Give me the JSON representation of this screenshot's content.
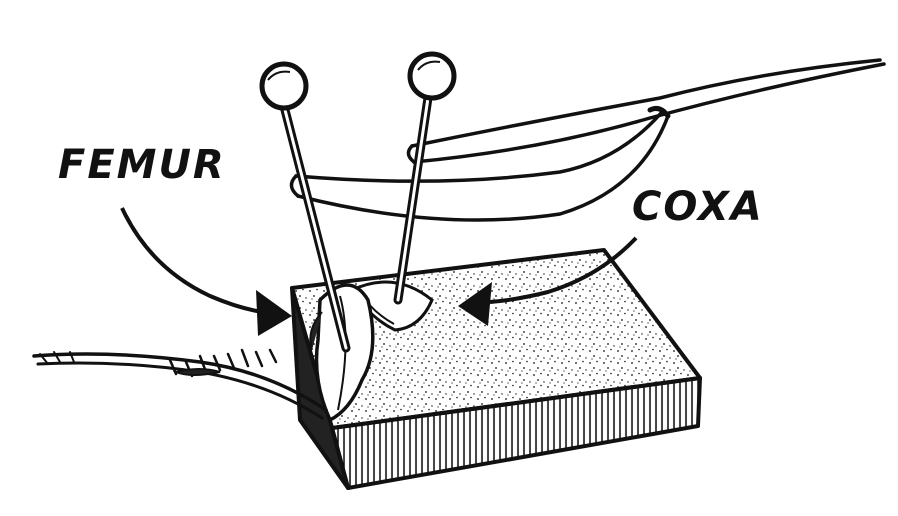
{
  "labels": {
    "femur": "FEMUR",
    "coxa": "COXA"
  },
  "colors": {
    "ink": "#111111",
    "paper": "#ffffff"
  },
  "icons": [
    "insect-pin-icon",
    "insect-pin-icon",
    "sponge-block",
    "bristle-leg-icon"
  ]
}
